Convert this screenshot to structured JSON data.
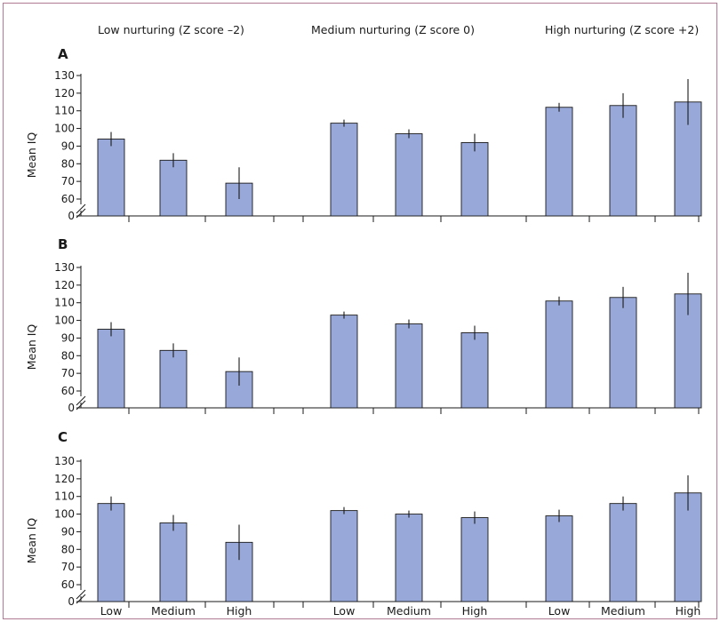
{
  "headers": {
    "low": "Low nurturing (Z score –2)",
    "medium": "Medium nurturing (Z score 0)",
    "high": "High nurturing (Z score +2)"
  },
  "colors": {
    "bar_fill": "#98a8d8",
    "frame": "#b07a92"
  },
  "chart_data": [
    {
      "type": "bar",
      "panel": "A",
      "ylabel": "Mean IQ",
      "yticks": [
        0,
        60,
        70,
        80,
        90,
        100,
        110,
        120,
        130
      ],
      "ylim": [
        0,
        130
      ],
      "axis_break": "between 0 and 60",
      "groups": [
        "Low nurturing (Z score –2)",
        "Medium nurturing (Z score 0)",
        "High nurturing (Z score +2)"
      ],
      "categories": [
        "Low",
        "Medium",
        "High"
      ],
      "values": [
        [
          94,
          82,
          69
        ],
        [
          103,
          97,
          92
        ],
        [
          112,
          113,
          115
        ]
      ],
      "errors": [
        [
          4,
          4,
          9
        ],
        [
          2,
          2.5,
          5
        ],
        [
          2.5,
          7,
          13
        ]
      ]
    },
    {
      "type": "bar",
      "panel": "B",
      "ylabel": "Mean IQ",
      "yticks": [
        0,
        60,
        70,
        80,
        90,
        100,
        110,
        120,
        130
      ],
      "ylim": [
        0,
        130
      ],
      "axis_break": "between 0 and 60",
      "groups": [
        "Low nurturing (Z score –2)",
        "Medium nurturing (Z score 0)",
        "High nurturing (Z score +2)"
      ],
      "categories": [
        "Low",
        "Medium",
        "High"
      ],
      "values": [
        [
          95,
          83,
          71
        ],
        [
          103,
          98,
          93
        ],
        [
          111,
          113,
          115
        ]
      ],
      "errors": [
        [
          4,
          4,
          8
        ],
        [
          2,
          2.5,
          4
        ],
        [
          2.5,
          6,
          12
        ]
      ]
    },
    {
      "type": "bar",
      "panel": "C",
      "ylabel": "Mean IQ",
      "yticks": [
        0,
        60,
        70,
        80,
        90,
        100,
        110,
        120,
        130
      ],
      "ylim": [
        0,
        130
      ],
      "axis_break": "between 0 and 60",
      "groups": [
        "Low nurturing (Z score –2)",
        "Medium nurturing (Z score 0)",
        "High nurturing (Z score +2)"
      ],
      "categories": [
        "Low",
        "Medium",
        "High"
      ],
      "values": [
        [
          106,
          95,
          84
        ],
        [
          102,
          100,
          98
        ],
        [
          99,
          106,
          112
        ]
      ],
      "errors": [
        [
          4,
          4.5,
          10
        ],
        [
          2,
          2,
          3.5
        ],
        [
          3.5,
          4,
          10
        ]
      ]
    }
  ]
}
